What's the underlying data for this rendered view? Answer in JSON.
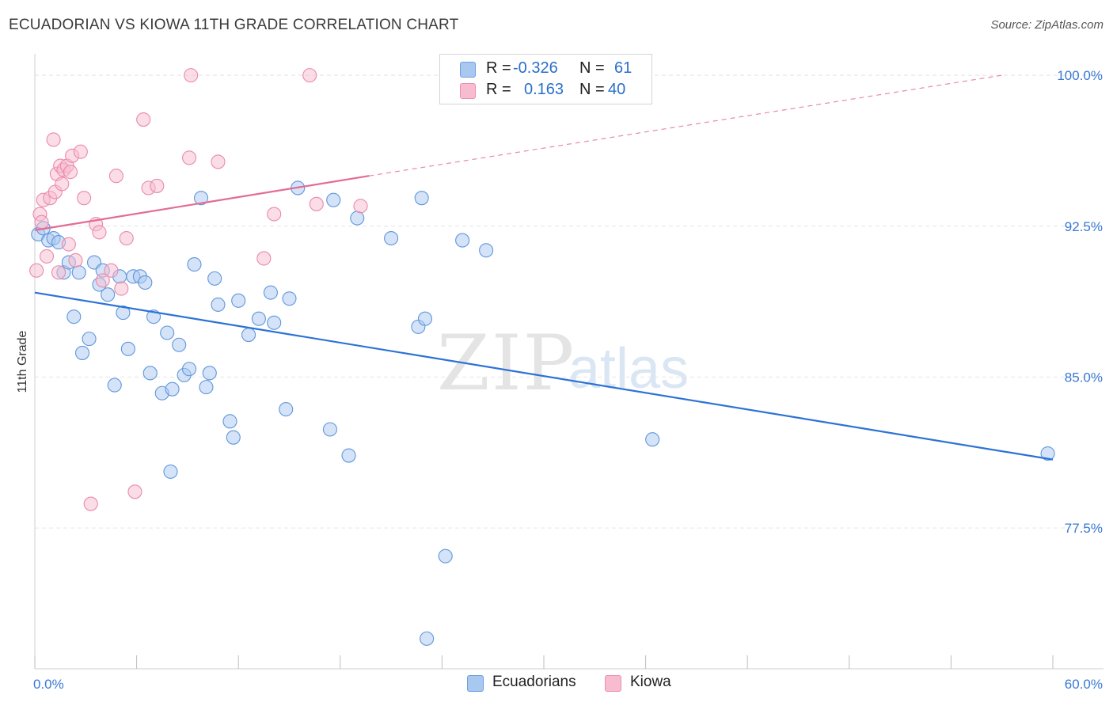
{
  "title": "ECUADORIAN VS KIOWA 11TH GRADE CORRELATION CHART",
  "source": "Source: ZipAtlas.com",
  "watermark": {
    "zip": "ZIP",
    "atlas": "atlas"
  },
  "legend": {
    "rows": [
      {
        "r_label": "R =",
        "r_value": "-0.326",
        "n_label": "N =",
        "n_value": "61",
        "color": "#a9c8f0",
        "stroke": "#6a9fe0"
      },
      {
        "r_label": "R =",
        "r_value": "0.163",
        "n_label": "N =",
        "n_value": "40",
        "color": "#f7bcd0",
        "stroke": "#ec8fb0"
      }
    ]
  },
  "bottom_legend": [
    {
      "label": "Ecuadorians",
      "color": "#a9c8f0",
      "stroke": "#6a9fe0"
    },
    {
      "label": "Kiowa",
      "color": "#f7bcd0",
      "stroke": "#ec8fb0"
    }
  ],
  "chart_data": {
    "type": "scatter",
    "title": "ECUADORIAN VS KIOWA 11TH GRADE CORRELATION CHART",
    "xlabel": "",
    "ylabel": "11th Grade",
    "xlim": [
      0,
      60
    ],
    "ylim": [
      70.5,
      101.5
    ],
    "x_tick_labels": [
      "0.0%",
      "60.0%"
    ],
    "y_ticks": [
      77.5,
      85.0,
      92.5,
      100.0
    ],
    "y_tick_labels": [
      "77.5%",
      "85.0%",
      "92.5%",
      "100.0%"
    ],
    "grid": true,
    "colors": {
      "blue": "#2c72d6",
      "pink": "#e36b94",
      "axis_text": "#3a78d4"
    },
    "series": [
      {
        "name": "Ecuadorians",
        "color": "#a9c8f0",
        "stroke": "#5f97dc",
        "trend": {
          "x": [
            0,
            60
          ],
          "y": [
            89.2,
            80.9
          ],
          "style": "solid",
          "color": "#2c72d6"
        },
        "points": [
          [
            0.2,
            92.1
          ],
          [
            0.5,
            92.4
          ],
          [
            0.8,
            91.8
          ],
          [
            1.1,
            91.9
          ],
          [
            1.4,
            91.7
          ],
          [
            1.7,
            90.2
          ],
          [
            2.0,
            90.7
          ],
          [
            2.3,
            88.0
          ],
          [
            2.6,
            90.2
          ],
          [
            2.8,
            86.2
          ],
          [
            3.2,
            86.9
          ],
          [
            3.5,
            90.7
          ],
          [
            3.8,
            89.6
          ],
          [
            4.0,
            90.3
          ],
          [
            4.3,
            89.1
          ],
          [
            4.7,
            84.6
          ],
          [
            5.0,
            90.0
          ],
          [
            5.2,
            88.2
          ],
          [
            5.5,
            86.4
          ],
          [
            5.8,
            90.0
          ],
          [
            6.2,
            90.0
          ],
          [
            6.5,
            89.7
          ],
          [
            6.8,
            85.2
          ],
          [
            7.0,
            88.0
          ],
          [
            7.5,
            84.2
          ],
          [
            7.8,
            87.2
          ],
          [
            8.1,
            84.4
          ],
          [
            8.5,
            86.6
          ],
          [
            8.8,
            85.1
          ],
          [
            9.1,
            85.4
          ],
          [
            9.4,
            90.6
          ],
          [
            9.8,
            93.9
          ],
          [
            10.1,
            84.5
          ],
          [
            10.3,
            85.2
          ],
          [
            10.6,
            89.9
          ],
          [
            10.8,
            88.6
          ],
          [
            11.5,
            82.8
          ],
          [
            11.7,
            82.0
          ],
          [
            12.0,
            88.8
          ],
          [
            12.6,
            87.1
          ],
          [
            13.2,
            87.9
          ],
          [
            13.9,
            89.2
          ],
          [
            14.1,
            87.7
          ],
          [
            14.8,
            83.4
          ],
          [
            15.0,
            88.9
          ],
          [
            15.5,
            94.4
          ],
          [
            17.4,
            82.4
          ],
          [
            17.6,
            93.8
          ],
          [
            18.5,
            81.1
          ],
          [
            19.0,
            92.9
          ],
          [
            21.0,
            91.9
          ],
          [
            22.6,
            87.5
          ],
          [
            22.8,
            93.9
          ],
          [
            23.0,
            87.9
          ],
          [
            23.1,
            72.0
          ],
          [
            24.2,
            76.1
          ],
          [
            25.2,
            91.8
          ],
          [
            26.6,
            91.3
          ],
          [
            8.0,
            80.3
          ],
          [
            36.4,
            81.9
          ],
          [
            59.7,
            81.2
          ]
        ]
      },
      {
        "name": "Kiowa",
        "color": "#f7bcd0",
        "stroke": "#e98aaa",
        "trend": {
          "x": [
            0,
            19.7
          ],
          "y": [
            92.3,
            95.0
          ],
          "style": "solid",
          "color": "#e36b94",
          "extension": {
            "x": [
              19.7,
              57.0
            ],
            "y": [
              95.0,
              100.0
            ],
            "style": "dashed"
          }
        },
        "points": [
          [
            0.1,
            90.3
          ],
          [
            0.3,
            93.1
          ],
          [
            0.4,
            92.7
          ],
          [
            0.5,
            93.8
          ],
          [
            0.7,
            91.0
          ],
          [
            0.9,
            93.9
          ],
          [
            1.1,
            96.8
          ],
          [
            1.2,
            94.2
          ],
          [
            1.3,
            95.1
          ],
          [
            1.4,
            90.2
          ],
          [
            1.5,
            95.5
          ],
          [
            1.6,
            94.6
          ],
          [
            1.7,
            95.3
          ],
          [
            1.9,
            95.5
          ],
          [
            2.0,
            91.6
          ],
          [
            2.1,
            95.2
          ],
          [
            2.2,
            96.0
          ],
          [
            2.4,
            90.8
          ],
          [
            2.7,
            96.2
          ],
          [
            2.9,
            93.9
          ],
          [
            3.6,
            92.6
          ],
          [
            3.8,
            92.2
          ],
          [
            4.5,
            90.3
          ],
          [
            4.8,
            95.0
          ],
          [
            5.1,
            89.4
          ],
          [
            5.4,
            91.9
          ],
          [
            5.9,
            79.3
          ],
          [
            6.4,
            97.8
          ],
          [
            6.7,
            94.4
          ],
          [
            7.2,
            94.5
          ],
          [
            9.1,
            95.9
          ],
          [
            9.2,
            100.0
          ],
          [
            10.8,
            95.7
          ],
          [
            13.5,
            90.9
          ],
          [
            14.1,
            93.1
          ],
          [
            16.2,
            100.0
          ],
          [
            16.6,
            93.6
          ],
          [
            19.2,
            93.5
          ],
          [
            3.3,
            78.7
          ],
          [
            4.0,
            89.8
          ]
        ]
      }
    ]
  }
}
